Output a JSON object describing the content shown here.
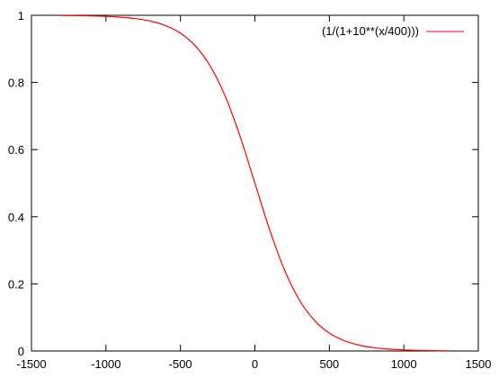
{
  "chart_data": {
    "type": "line",
    "title": "",
    "xlabel": "",
    "ylabel": "",
    "xlim": [
      -1500,
      1500
    ],
    "ylim": [
      0,
      1
    ],
    "xticks": [
      -1500,
      -1000,
      -500,
      0,
      500,
      1000,
      1500
    ],
    "yticks": [
      0,
      0.2,
      0.4,
      0.6,
      0.8,
      1
    ],
    "xtick_labels": [
      "-1500",
      "-1000",
      "-500",
      "0",
      "500",
      "1000",
      "1500"
    ],
    "ytick_labels": [
      "0",
      "0.2",
      "0.4",
      "0.6",
      "0.8",
      "1"
    ],
    "grid": false,
    "legend_position": "top-right",
    "series": [
      {
        "name": "(1/(1+10**(x/400)))",
        "color": "#ff0000",
        "x": [
          -1300,
          -1200,
          -1100,
          -1000,
          -900,
          -800,
          -700,
          -600,
          -500,
          -400,
          -300,
          -200,
          -100,
          0,
          100,
          200,
          300,
          400,
          500,
          600,
          700,
          800,
          900,
          1000,
          1100,
          1200,
          1300
        ],
        "y": [
          0.9994,
          0.999,
          0.9982,
          0.9968,
          0.9944,
          0.9901,
          0.9826,
          0.9693,
          0.9468,
          0.9091,
          0.849,
          0.7597,
          0.6401,
          0.5,
          0.3599,
          0.2403,
          0.151,
          0.0909,
          0.0532,
          0.0307,
          0.0174,
          0.0099,
          0.0056,
          0.0032,
          0.0018,
          0.001,
          0.0006
        ]
      }
    ]
  }
}
